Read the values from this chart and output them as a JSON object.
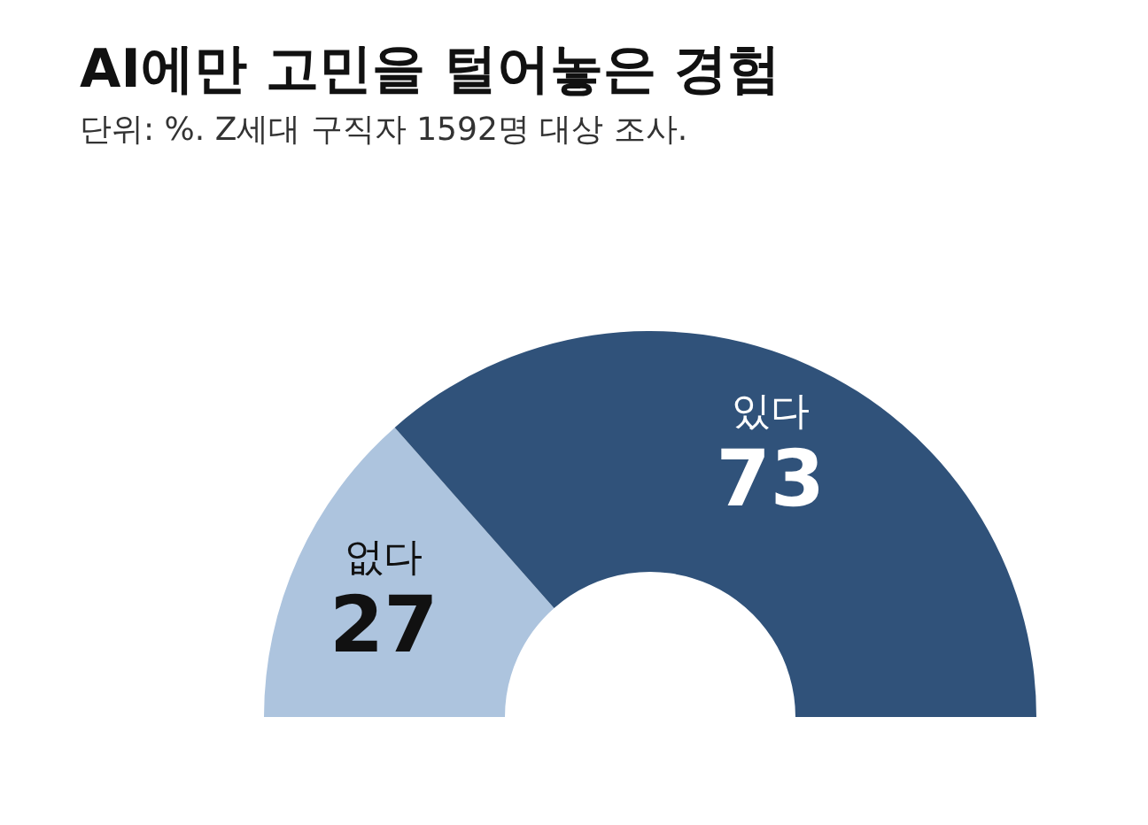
{
  "chart_data": {
    "type": "donut",
    "title": "AI에만 고민을 털어놓은 경험",
    "subtitle": "단위: %. Z세대 구직자 1592명 대상 조사.",
    "categories": [
      "없다",
      "있다"
    ],
    "values": [
      27,
      73
    ],
    "colors": [
      "#adc4de",
      "#30527a"
    ],
    "data_labels": true
  }
}
